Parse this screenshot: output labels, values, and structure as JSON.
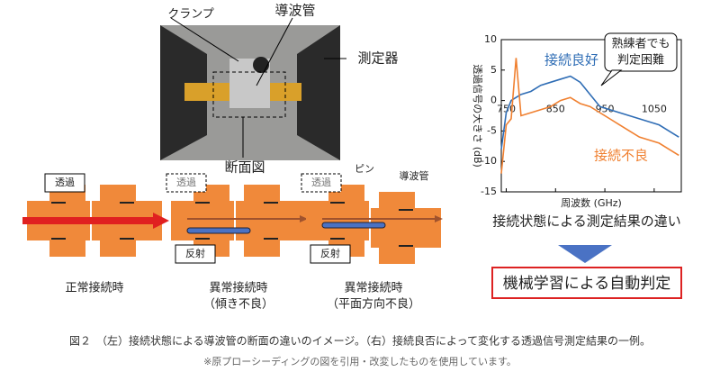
{
  "photo": {
    "clamp": "クランプ",
    "waveguide": "導波管",
    "instrument": "測定器",
    "section": "断面図"
  },
  "diagrams": [
    {
      "caption": [
        "正常接続時"
      ],
      "transmission": "透過"
    },
    {
      "caption": [
        "異常接続時",
        "（傾き不良）"
      ],
      "transmission": "透過",
      "reflection": "反射"
    },
    {
      "caption": [
        "異常接続時",
        "（平面方向不良）"
      ],
      "transmission": "透過",
      "reflection": "反射",
      "pin": "ピン",
      "waveguide": "導波管"
    }
  ],
  "chart_data": {
    "type": "line",
    "title": "接続状態による測定結果の違い",
    "x_label": "周波数 (GHz)",
    "y_label": "透過信号の大きさ (dB)",
    "annotation": [
      "熟練者でも",
      "判定困難"
    ],
    "x": [
      740,
      750,
      760,
      770,
      780,
      800,
      820,
      840,
      860,
      880,
      900,
      920,
      940,
      960,
      980,
      1000,
      1020,
      1040,
      1060,
      1080,
      1100
    ],
    "series": [
      {
        "name": "接続良好",
        "color": "#2f6db5",
        "values": [
          -8,
          -2,
          0,
          0.5,
          1,
          1.5,
          2.5,
          3,
          3.5,
          4,
          3,
          1,
          -1,
          -1.5,
          -2,
          -2.5,
          -3,
          -3.5,
          -4,
          -5,
          -6
        ]
      },
      {
        "name": "接続不良",
        "color": "#f08030",
        "values": [
          -12,
          -4,
          -3,
          7,
          -2.5,
          -2,
          -1.5,
          -1,
          0,
          0.5,
          -0.5,
          -1,
          -2,
          -3,
          -4,
          -5,
          -6,
          -6.5,
          -7,
          -8,
          -9
        ]
      }
    ],
    "xlim": [
      740,
      1105
    ],
    "ylim": [
      -15,
      10
    ],
    "xticks": [
      750,
      850,
      950,
      1050
    ],
    "yticks": [
      10,
      5,
      0,
      -5,
      -10,
      -15
    ]
  },
  "result": "機械学習による自動判定",
  "caption": [
    "図２　（左）接続状態による導波管の断面の違いのイメージ。（右）接続良否によって変化する透過信号測定結果の一例。",
    "※原プローシーディングの図を引用・改変したものを使用しています。"
  ]
}
